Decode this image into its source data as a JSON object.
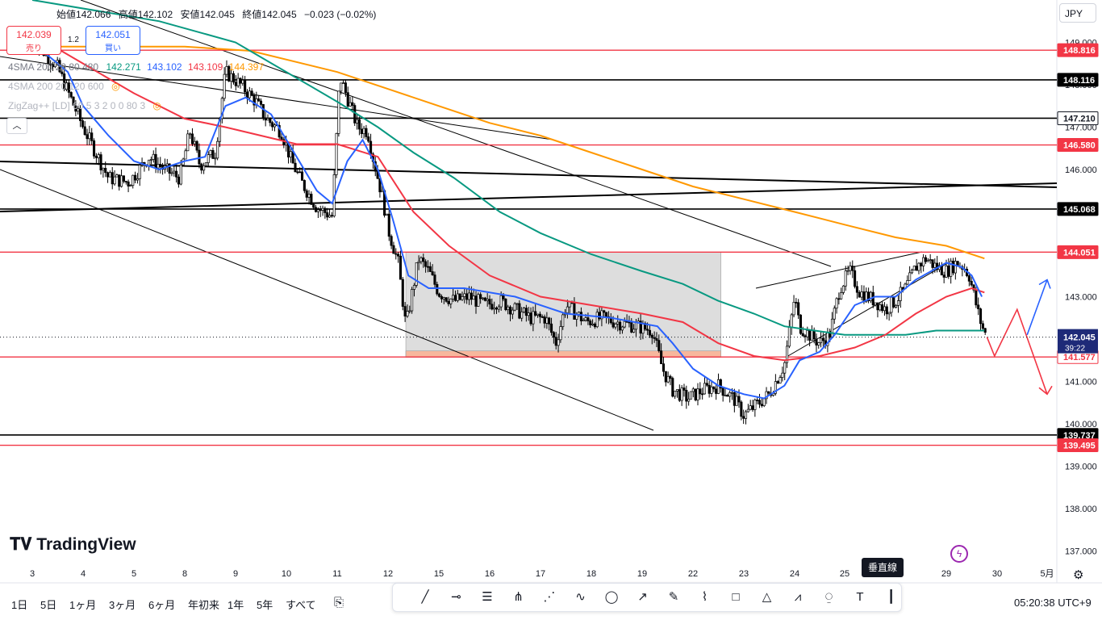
{
  "header": {
    "ohlc": [
      {
        "label": "始値",
        "value": "142.066"
      },
      {
        "label": "高値",
        "value": "142.102"
      },
      {
        "label": "安値",
        "value": "142.045"
      },
      {
        "label": "終値",
        "value": "142.045"
      }
    ],
    "change": "−0.023 (−0.02%)",
    "sell_price": "142.039",
    "sell_label": "売り",
    "spread": "1.2",
    "buy_price": "142.051",
    "buy_label": "買い",
    "currency": "JPY"
  },
  "indicators": {
    "sma1_name": "4SMA 200 20 80 480",
    "sma1_values": [
      "142.271",
      "143.102",
      "143.109",
      "144.397"
    ],
    "sma1_colors": [
      "#089981",
      "#2962ff",
      "#f23645",
      "#ff9800"
    ],
    "sma2_name": "4SMA 200 20 120 600",
    "zigzag_name": "ZigZag++ [LD] 60 5 3 2 0 0 80 3"
  },
  "chart_data": {
    "type": "candlestick",
    "y_axis": {
      "ticks": [
        "149.000",
        "148.000",
        "147.000",
        "146.000",
        "145.000",
        "144.000",
        "143.000",
        "142.000",
        "141.000",
        "140.000",
        "139.000",
        "138.000",
        "137.000"
      ],
      "range": [
        136.7,
        149.2
      ]
    },
    "x_axis": {
      "ticks": [
        "3",
        "4",
        "5",
        "8",
        "9",
        "10",
        "11",
        "12",
        "15",
        "16",
        "17",
        "18",
        "19",
        "22",
        "23",
        "24",
        "25",
        "26",
        "29",
        "30",
        "5月"
      ]
    },
    "price_labels": [
      {
        "value": "148.816",
        "style": "red"
      },
      {
        "value": "148.116",
        "style": "black"
      },
      {
        "value": "147.210",
        "style": "white"
      },
      {
        "value": "146.580",
        "style": "red"
      },
      {
        "value": "145.068",
        "style": "black"
      },
      {
        "value": "144.051",
        "style": "red"
      },
      {
        "value": "141.577",
        "style": "white_red"
      },
      {
        "value": "139.737",
        "style": "black"
      },
      {
        "value": "139.495",
        "style": "red"
      }
    ],
    "current": {
      "value": "142.045",
      "countdown": "39:22"
    },
    "horizontal_lines": [
      {
        "value": 148.816,
        "color": "#f23645"
      },
      {
        "value": 148.116,
        "color": "#000000"
      },
      {
        "value": 147.21,
        "color": "#000000"
      },
      {
        "value": 146.58,
        "color": "#f23645"
      },
      {
        "value": 145.068,
        "color": "#000000"
      },
      {
        "value": 144.051,
        "color": "#f23645"
      },
      {
        "value": 141.577,
        "color": "#f23645"
      },
      {
        "value": 139.737,
        "color": "#000000"
      },
      {
        "value": 139.495,
        "color": "#f23645"
      }
    ],
    "close_path": [
      [
        0,
        149.1
      ],
      [
        0.5,
        148.4
      ],
      [
        1,
        147.0
      ],
      [
        1.5,
        145.8
      ],
      [
        1.9,
        145.7
      ],
      [
        2.3,
        146.3
      ],
      [
        2.6,
        146.0
      ],
      [
        2.9,
        145.8
      ],
      [
        3.1,
        146.9
      ],
      [
        3.3,
        146.1
      ],
      [
        3.6,
        146.4
      ],
      [
        3.8,
        148.3
      ],
      [
        4.1,
        148.0
      ],
      [
        4.4,
        147.6
      ],
      [
        4.6,
        147.2
      ],
      [
        4.9,
        146.9
      ],
      [
        5.1,
        146.2
      ],
      [
        5.3,
        145.7
      ],
      [
        5.6,
        145.1
      ],
      [
        5.9,
        144.9
      ],
      [
        6.05,
        148.2
      ],
      [
        6.2,
        147.7
      ],
      [
        6.4,
        147.0
      ],
      [
        6.6,
        146.9
      ],
      [
        6.7,
        146.3
      ],
      [
        6.9,
        145.3
      ],
      [
        7.0,
        144.6
      ],
      [
        7.2,
        143.8
      ],
      [
        7.35,
        142.3
      ],
      [
        7.6,
        143.9
      ],
      [
        7.8,
        143.6
      ],
      [
        8.0,
        143.1
      ],
      [
        8.3,
        142.9
      ],
      [
        8.6,
        143.0
      ],
      [
        8.9,
        142.8
      ],
      [
        9.2,
        142.9
      ],
      [
        9.5,
        142.7
      ],
      [
        9.8,
        142.5
      ],
      [
        10.1,
        142.5
      ],
      [
        10.3,
        141.9
      ],
      [
        10.5,
        142.8
      ],
      [
        10.9,
        142.4
      ],
      [
        11.2,
        142.5
      ],
      [
        11.5,
        142.4
      ],
      [
        11.9,
        142.3
      ],
      [
        12.2,
        142.2
      ],
      [
        12.4,
        141.3
      ],
      [
        12.6,
        140.8
      ],
      [
        12.9,
        140.6
      ],
      [
        13.2,
        140.8
      ],
      [
        13.5,
        140.9
      ],
      [
        13.8,
        140.6
      ],
      [
        14.0,
        140.2
      ],
      [
        14.2,
        140.4
      ],
      [
        14.5,
        140.7
      ],
      [
        14.8,
        141.4
      ],
      [
        15.0,
        143.0
      ],
      [
        15.1,
        142.3
      ],
      [
        15.3,
        142.1
      ],
      [
        15.5,
        141.9
      ],
      [
        15.7,
        142.1
      ],
      [
        15.9,
        143.2
      ],
      [
        16.1,
        143.6
      ],
      [
        16.3,
        143.1
      ],
      [
        16.6,
        142.9
      ],
      [
        16.8,
        142.7
      ],
      [
        17.0,
        142.9
      ],
      [
        17.2,
        143.2
      ],
      [
        17.4,
        143.7
      ],
      [
        17.6,
        143.9
      ],
      [
        17.8,
        143.7
      ],
      [
        18.0,
        143.6
      ],
      [
        18.2,
        143.8
      ],
      [
        18.35,
        143.7
      ],
      [
        18.45,
        143.5
      ],
      [
        18.55,
        143.0
      ],
      [
        18.65,
        142.5
      ],
      [
        18.75,
        142.15
      ],
      [
        18.8,
        142.045
      ]
    ],
    "sma20_path": [
      [
        0,
        149.0
      ],
      [
        0.7,
        148.3
      ],
      [
        1,
        147.5
      ],
      [
        1.5,
        146.8
      ],
      [
        2.0,
        146.2
      ],
      [
        2.5,
        146.0
      ],
      [
        3.0,
        146.2
      ],
      [
        3.4,
        146.3
      ],
      [
        3.8,
        147.5
      ],
      [
        4.2,
        147.7
      ],
      [
        4.7,
        147.3
      ],
      [
        5.2,
        146.3
      ],
      [
        5.6,
        145.5
      ],
      [
        5.9,
        145.2
      ],
      [
        6.2,
        146.2
      ],
      [
        6.5,
        146.7
      ],
      [
        6.8,
        146.0
      ],
      [
        7.1,
        144.8
      ],
      [
        7.4,
        143.5
      ],
      [
        7.8,
        143.2
      ],
      [
        8.5,
        143.2
      ],
      [
        9.5,
        143.0
      ],
      [
        10.5,
        142.6
      ],
      [
        11.4,
        142.5
      ],
      [
        12.3,
        142.3
      ],
      [
        12.6,
        141.9
      ],
      [
        13.0,
        141.3
      ],
      [
        13.5,
        140.9
      ],
      [
        14.0,
        140.7
      ],
      [
        14.4,
        140.6
      ],
      [
        14.8,
        140.9
      ],
      [
        15.1,
        141.5
      ],
      [
        15.5,
        141.7
      ],
      [
        15.8,
        142.1
      ],
      [
        16.2,
        142.8
      ],
      [
        16.6,
        143.0
      ],
      [
        17.0,
        143.0
      ],
      [
        17.4,
        143.4
      ],
      [
        17.7,
        143.6
      ],
      [
        18.0,
        143.8
      ],
      [
        18.3,
        143.7
      ],
      [
        18.5,
        143.5
      ],
      [
        18.7,
        143.0
      ]
    ],
    "sma80_path": [
      [
        0,
        149.2
      ],
      [
        1,
        148.5
      ],
      [
        2,
        147.8
      ],
      [
        3,
        147.2
      ],
      [
        3.8,
        147.0
      ],
      [
        4.5,
        146.8
      ],
      [
        5.2,
        146.6
      ],
      [
        6.0,
        146.6
      ],
      [
        6.8,
        146.3
      ],
      [
        7.5,
        145.0
      ],
      [
        8.2,
        144.2
      ],
      [
        9.0,
        143.5
      ],
      [
        10.0,
        143.0
      ],
      [
        11.0,
        142.8
      ],
      [
        12.0,
        142.6
      ],
      [
        12.8,
        142.4
      ],
      [
        13.5,
        141.9
      ],
      [
        14.2,
        141.6
      ],
      [
        14.8,
        141.5
      ],
      [
        15.5,
        141.6
      ],
      [
        16.2,
        141.8
      ],
      [
        16.8,
        142.1
      ],
      [
        17.4,
        142.6
      ],
      [
        18.0,
        143.0
      ],
      [
        18.5,
        143.2
      ],
      [
        18.75,
        143.1
      ]
    ],
    "sma200_path": [
      [
        0,
        150.0
      ],
      [
        2.5,
        149.5
      ],
      [
        4,
        149.0
      ],
      [
        5,
        148.3
      ],
      [
        6,
        147.6
      ],
      [
        6.8,
        147.0
      ],
      [
        7.5,
        146.4
      ],
      [
        8.3,
        145.8
      ],
      [
        9.2,
        145.0
      ],
      [
        10.0,
        144.5
      ],
      [
        11.0,
        144.0
      ],
      [
        12.0,
        143.6
      ],
      [
        12.8,
        143.3
      ],
      [
        13.5,
        142.9
      ],
      [
        14.2,
        142.6
      ],
      [
        14.8,
        142.3
      ],
      [
        15.4,
        142.2
      ],
      [
        16.0,
        142.1
      ],
      [
        16.6,
        142.1
      ],
      [
        17.2,
        142.1
      ],
      [
        17.8,
        142.2
      ],
      [
        18.4,
        142.2
      ],
      [
        18.75,
        142.2
      ]
    ],
    "sma480_path": [
      [
        0,
        148.9
      ],
      [
        3,
        148.9
      ],
      [
        4.3,
        148.8
      ],
      [
        6,
        148.3
      ],
      [
        7,
        147.9
      ],
      [
        8,
        147.5
      ],
      [
        9,
        147.1
      ],
      [
        10,
        146.8
      ],
      [
        11,
        146.4
      ],
      [
        12,
        146.0
      ],
      [
        13,
        145.6
      ],
      [
        14,
        145.3
      ],
      [
        15,
        145.0
      ],
      [
        16,
        144.7
      ],
      [
        17,
        144.4
      ],
      [
        18,
        144.2
      ],
      [
        18.75,
        143.9
      ]
    ],
    "sma_colors": [
      "#089981",
      "#2962ff",
      "#f23645",
      "#ff9800"
    ],
    "drawings": [
      {
        "kind": "rect",
        "x1": 7.35,
        "x2": 13.55,
        "y1": 144.05,
        "y2": 141.57,
        "color": "#d9d9d9"
      },
      {
        "kind": "rect",
        "x1": 7.35,
        "x2": 13.55,
        "y1": 141.72,
        "y2": 141.57,
        "color": "#f9b396"
      }
    ],
    "forecast_red": [
      [
        18.8,
        142.045
      ],
      [
        18.95,
        141.6
      ],
      [
        19.4,
        142.7
      ],
      [
        20.0,
        140.7
      ]
    ],
    "forecast_blue": [
      [
        19.6,
        142.1
      ],
      [
        20.0,
        143.4
      ]
    ]
  },
  "watermark": "TradingView",
  "tooltip": "垂直線",
  "bottom": {
    "timeframes": [
      "1日",
      "5日",
      "1ヶ月",
      "3ヶ月",
      "6ヶ月",
      "年初来",
      "1年",
      "5年",
      "すべて"
    ],
    "clock": "05:20:38 UTC+9"
  },
  "tools": [
    "trend-line-icon",
    "horizontal-ray-icon",
    "parallel-channel-icon",
    "pitchfork-icon",
    "fib-retracement-icon",
    "curve-icon",
    "ellipse-icon",
    "arrow-icon",
    "brush-icon",
    "highlighter-icon",
    "rectangle-icon",
    "triangle-icon",
    "path-icon",
    "polyline-icon",
    "text-icon",
    "vertical-line-icon"
  ]
}
